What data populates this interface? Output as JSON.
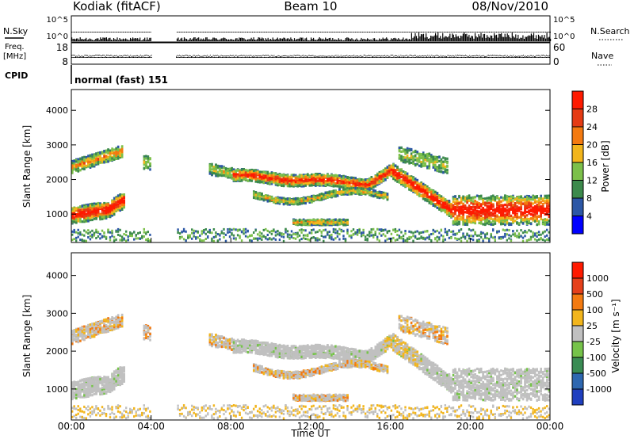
{
  "header": {
    "station": "Kodiak (fitACF)",
    "beam": "Beam 10",
    "date": "08/Nov/2010"
  },
  "status_panel": {
    "nsky_label": "N.Sky",
    "nsearch_label": "N.Search",
    "noise_tick_top": "10^5",
    "noise_tick_bottom": "10^0",
    "freq_label_line1": "Freq.",
    "freq_label_line2": "[MHz]",
    "freq_tick_top": "18",
    "freq_tick_bottom": "8",
    "nave_label": "Nave",
    "nave_tick_top": "60",
    "nave_tick_bottom": "0",
    "cpid_label": "CPID",
    "cpid_value": "normal (fast) 151"
  },
  "chart_data": [
    {
      "type": "heatmap",
      "panel": "power",
      "ylabel": "Slant Range [km]",
      "ylim": [
        180,
        4600
      ],
      "yticks": [
        "1000",
        "2000",
        "3000",
        "4000"
      ],
      "colorbar_label": "Power [dB]",
      "colorbar_ticks": [
        "4",
        "8",
        "12",
        "16",
        "20",
        "24",
        "28"
      ],
      "colorbar_colors": [
        "#0000ff",
        "#2c57a6",
        "#3c8a4c",
        "#7cc04a",
        "#f2b51c",
        "#f47a10",
        "#e53b14",
        "#ff1a00"
      ],
      "data_gap_hours": [
        [
          4.0,
          5.2
        ]
      ],
      "features": [
        {
          "t0": 0.0,
          "t1": 2.6,
          "r0": 850,
          "r1": 1450,
          "level": "strong"
        },
        {
          "t0": 8.0,
          "t1": 16.0,
          "r0": 1750,
          "r1": 2350,
          "level": "strong"
        },
        {
          "t0": 16.0,
          "t1": 24.0,
          "r0": 700,
          "r1": 1600,
          "level": "strong"
        }
      ]
    },
    {
      "type": "heatmap",
      "panel": "velocity",
      "ylabel": "Slant Range [km]",
      "ylim": [
        180,
        4600
      ],
      "yticks": [
        "1000",
        "2000",
        "3000",
        "4000"
      ],
      "colorbar_label": "Velocity [m s⁻¹]",
      "colorbar_ticks": [
        "1000",
        "500",
        "100",
        "25",
        "-25",
        "-100",
        "-500",
        "-1000"
      ],
      "colorbar_colors": [
        "#1f3fbf",
        "#2e67b0",
        "#3a8c54",
        "#76c34a",
        "#c0c0c0",
        "#f2b51c",
        "#f47a10",
        "#e5401a",
        "#ff1a00"
      ],
      "data_gap_hours": [
        [
          4.0,
          5.2
        ]
      ],
      "xlabel": "Time UT",
      "xlim": [
        0,
        24
      ],
      "xticks": [
        "00:00",
        "04:00",
        "08:00",
        "12:00",
        "16:00",
        "20:00",
        "00:00"
      ]
    }
  ]
}
